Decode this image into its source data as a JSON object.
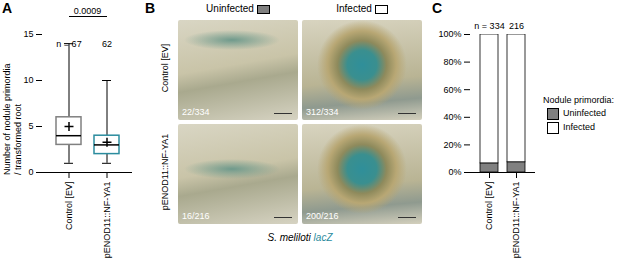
{
  "chart_data": [
    {
      "panel": "A",
      "type": "box",
      "ylabel": "Number of nodule primordia\n/ transformed root",
      "categories": [
        "Control [EV]",
        "pENOD11::NF-YA1"
      ],
      "colors": [
        "#808080",
        "#2b8c9e"
      ],
      "boxes": [
        {
          "min": 1,
          "q1": 3,
          "median": 4,
          "q3": 6,
          "max": 14,
          "mean": 5
        },
        {
          "min": 1,
          "q1": 2,
          "median": 3,
          "q3": 4,
          "max": 10,
          "mean": 3.3
        }
      ],
      "n_labels": [
        "n = 67",
        "62"
      ],
      "p_value": "0.0009",
      "ylim": [
        0,
        15
      ],
      "yticks": [
        0,
        5,
        10,
        15
      ]
    },
    {
      "panel": "C",
      "type": "bar",
      "stacked": true,
      "categories": [
        "Control [EV]",
        "pENOD11::NF-YA1"
      ],
      "series": [
        {
          "name": "Uninfected",
          "color": "#808080",
          "values": [
            6.6,
            7.4
          ]
        },
        {
          "name": "Infected",
          "color": "#ffffff",
          "values": [
            93.4,
            92.6
          ]
        }
      ],
      "n_labels": [
        "n = 334",
        "216"
      ],
      "legend_title": "Nodule primordia:",
      "legend": "right",
      "ylim": [
        0,
        100
      ],
      "yticks": [
        {
          "value": 0,
          "label": "0%"
        },
        {
          "value": 20,
          "label": "20%"
        },
        {
          "value": 40,
          "label": "40%"
        },
        {
          "value": 60,
          "label": "60%"
        },
        {
          "value": 80,
          "label": "80%"
        },
        {
          "value": 100,
          "label": "100%"
        }
      ]
    }
  ],
  "panel_b": {
    "panel": "B",
    "columns": [
      {
        "label": "Uninfected",
        "color": "#808080"
      },
      {
        "label": "Infected",
        "color": "#ffffff"
      }
    ],
    "rows": [
      "Control [EV]",
      "pENOD11::NF-YA1"
    ],
    "counts": [
      [
        "22/334",
        "312/334"
      ],
      [
        "16/216",
        "200/216"
      ]
    ],
    "caption": {
      "organism": "S. meliloti",
      "reporter": "lacZ",
      "reporter_color": "#2b8c9e"
    }
  }
}
